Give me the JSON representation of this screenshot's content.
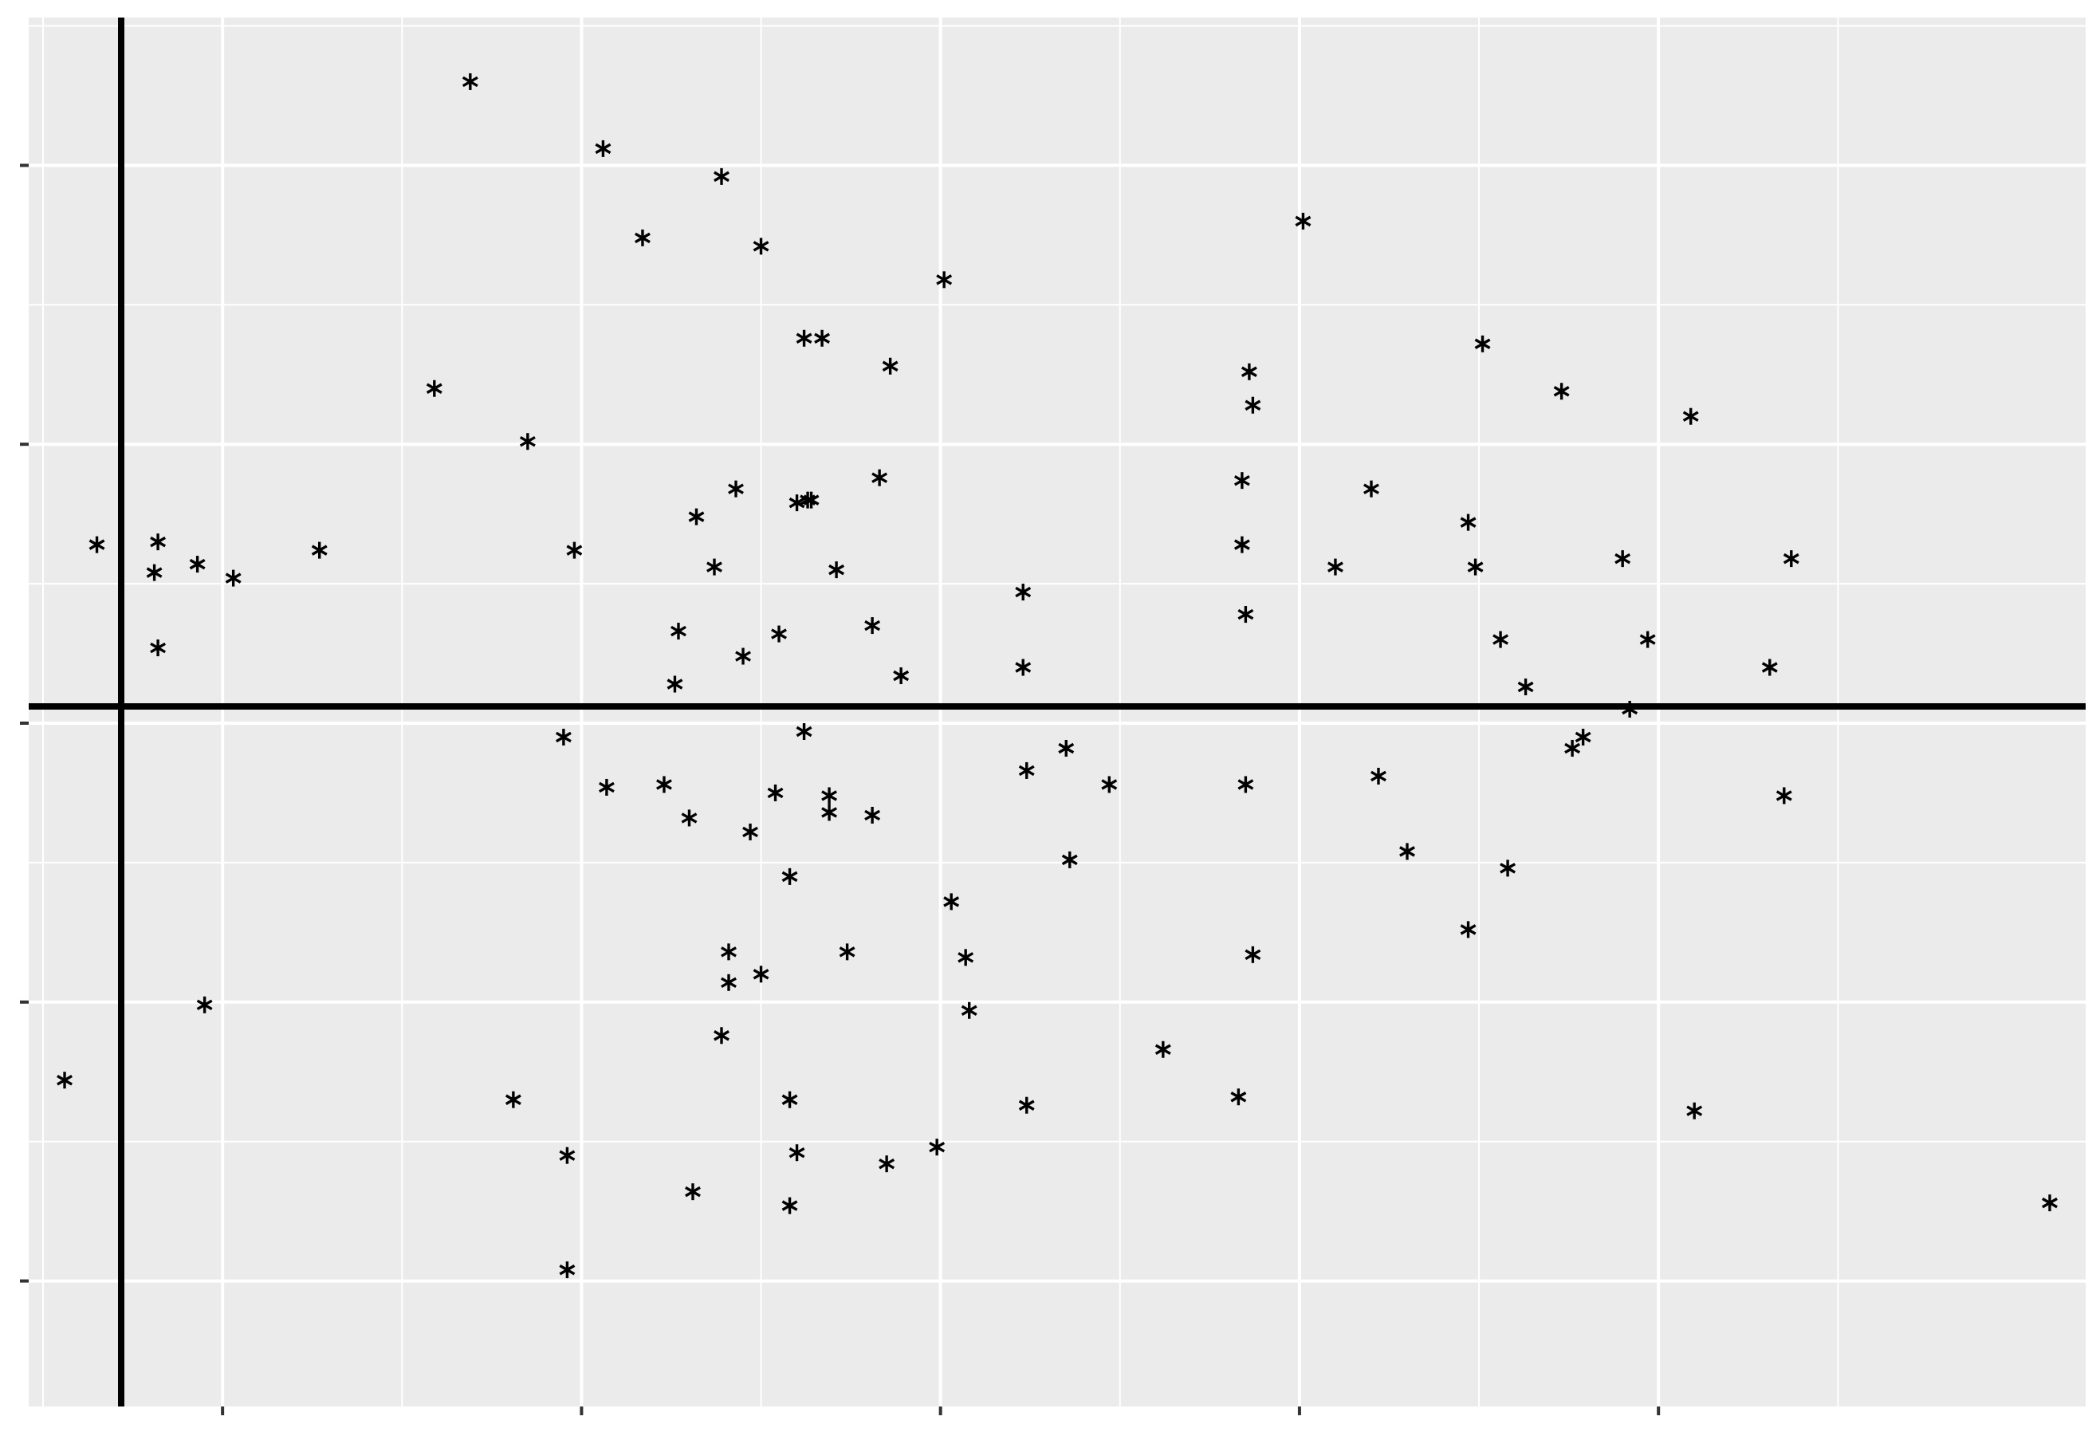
{
  "chart_data": {
    "type": "scatter",
    "title": "",
    "xlabel": "",
    "ylabel": "",
    "marker": "asterisk",
    "grid": true,
    "xlim": [
      -0.54,
      5.19
    ],
    "ylim": [
      -2.45,
      2.53
    ],
    "x_major_ticks": [
      0,
      1,
      2,
      3,
      4
    ],
    "y_major_ticks": [
      -2,
      -1,
      0,
      1,
      2
    ],
    "reference_lines": {
      "vertical_x": -0.54,
      "horizontal_y": 0.06
    },
    "tick_labels_shown": false,
    "point_color": "#000000",
    "panel_color": "#ebebeb",
    "series": [
      {
        "points": [
          [
            0.69,
            2.3
          ],
          [
            1.06,
            2.06
          ],
          [
            1.39,
            1.96
          ],
          [
            1.17,
            1.74
          ],
          [
            1.5,
            1.71
          ],
          [
            2.01,
            1.59
          ],
          [
            3.01,
            1.8
          ],
          [
            1.62,
            1.38
          ],
          [
            1.67,
            1.38
          ],
          [
            1.86,
            1.28
          ],
          [
            3.51,
            1.36
          ],
          [
            3.73,
            1.19
          ],
          [
            4.09,
            1.1
          ],
          [
            0.59,
            1.2
          ],
          [
            1.89,
            0.17
          ],
          [
            0.85,
            1.01
          ],
          [
            1.83,
            0.88
          ],
          [
            1.63,
            0.8
          ],
          [
            1.64,
            0.8
          ],
          [
            2.86,
            1.26
          ],
          [
            2.87,
            1.14
          ],
          [
            2.84,
            0.87
          ],
          [
            3.2,
            0.84
          ],
          [
            3.47,
            0.72
          ],
          [
            -0.35,
            0.64
          ],
          [
            -0.18,
            0.65
          ],
          [
            0.27,
            0.62
          ],
          [
            -0.07,
            0.57
          ],
          [
            -0.19,
            0.54
          ],
          [
            0.03,
            0.52
          ],
          [
            0.98,
            0.62
          ],
          [
            1.32,
            0.74
          ],
          [
            1.71,
            0.55
          ],
          [
            1.37,
            0.56
          ],
          [
            1.43,
            0.84
          ],
          [
            1.6,
            0.79
          ],
          [
            2.84,
            0.64
          ],
          [
            3.1,
            0.56
          ],
          [
            3.49,
            0.56
          ],
          [
            3.9,
            0.59
          ],
          [
            4.37,
            0.59
          ],
          [
            -0.18,
            0.27
          ],
          [
            1.27,
            0.33
          ],
          [
            1.55,
            0.32
          ],
          [
            1.45,
            0.24
          ],
          [
            1.81,
            0.35
          ],
          [
            1.26,
            0.14
          ],
          [
            2.23,
            0.47
          ],
          [
            2.85,
            0.39
          ],
          [
            2.23,
            0.2
          ],
          [
            3.56,
            0.3
          ],
          [
            3.97,
            0.3
          ],
          [
            3.63,
            0.13
          ],
          [
            4.31,
            0.2
          ],
          [
            3.92,
            0.05
          ],
          [
            1.62,
            -0.03
          ],
          [
            0.95,
            -0.05
          ],
          [
            1.07,
            -0.23
          ],
          [
            1.23,
            -0.22
          ],
          [
            1.3,
            -0.34
          ],
          [
            1.54,
            -0.25
          ],
          [
            1.69,
            -0.26
          ],
          [
            1.69,
            -0.32
          ],
          [
            1.81,
            -0.33
          ],
          [
            1.47,
            -0.39
          ],
          [
            1.58,
            -0.55
          ],
          [
            2.35,
            -0.09
          ],
          [
            2.24,
            -0.17
          ],
          [
            2.47,
            -0.22
          ],
          [
            2.85,
            -0.22
          ],
          [
            3.22,
            -0.19
          ],
          [
            3.76,
            -0.09
          ],
          [
            3.79,
            -0.05
          ],
          [
            4.35,
            -0.26
          ],
          [
            3.3,
            -0.46
          ],
          [
            3.58,
            -0.52
          ],
          [
            2.36,
            -0.49
          ],
          [
            2.03,
            -0.64
          ],
          [
            3.47,
            -0.74
          ],
          [
            1.41,
            -0.82
          ],
          [
            1.41,
            -0.93
          ],
          [
            1.5,
            -0.9
          ],
          [
            1.74,
            -0.82
          ],
          [
            2.07,
            -0.84
          ],
          [
            2.08,
            -1.03
          ],
          [
            2.87,
            -0.83
          ],
          [
            -0.05,
            -1.01
          ],
          [
            1.39,
            -1.12
          ],
          [
            2.62,
            -1.17
          ],
          [
            -0.44,
            -1.28
          ],
          [
            0.81,
            -1.35
          ],
          [
            1.58,
            -1.35
          ],
          [
            2.24,
            -1.37
          ],
          [
            2.83,
            -1.34
          ],
          [
            4.1,
            -1.39
          ],
          [
            0.96,
            -1.55
          ],
          [
            1.6,
            -1.54
          ],
          [
            1.85,
            -1.58
          ],
          [
            1.99,
            -1.52
          ],
          [
            1.58,
            -1.73
          ],
          [
            1.31,
            -1.68
          ],
          [
            0.96,
            -1.96
          ],
          [
            5.09,
            -1.72
          ]
        ]
      }
    ]
  }
}
